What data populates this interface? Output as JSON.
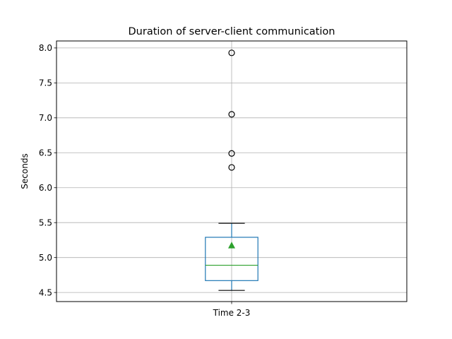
{
  "chart_data": {
    "type": "box",
    "title": "Duration of server-client communication",
    "xlabel": "",
    "ylabel": "Seconds",
    "categories": [
      "Time 2-3"
    ],
    "ylim": [
      4.37,
      8.1
    ],
    "yticks": [
      "4.5",
      "5.0",
      "5.5",
      "6.0",
      "6.5",
      "7.0",
      "7.5",
      "8.0"
    ],
    "grid": true,
    "legend": "none",
    "boxes": [
      {
        "category": "Time 2-3",
        "whisker_low": 4.53,
        "q1": 4.67,
        "median": 4.89,
        "q3": 5.29,
        "whisker_high": 5.49,
        "mean": 5.17,
        "outliers": [
          6.29,
          6.49,
          7.05,
          7.93
        ]
      }
    ]
  },
  "colors": {
    "box": "#1f77b4",
    "median": "#2ca02c",
    "mean_marker": "#2ca02c",
    "whisker": "#000000",
    "grid": "#b0b0b0",
    "axes": "#000000"
  }
}
